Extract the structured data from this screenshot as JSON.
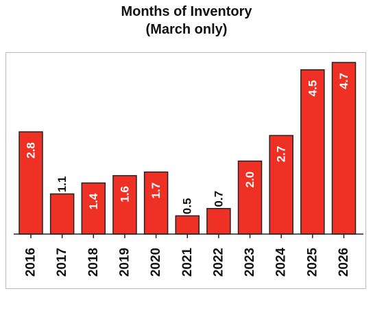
{
  "chart_data": {
    "type": "bar",
    "title_lines": [
      "Months of Inventory",
      "(March only)"
    ],
    "categories": [
      "2016",
      "2017",
      "2018",
      "2019",
      "2020",
      "2021",
      "2022",
      "2023",
      "2024",
      "2025",
      "2026"
    ],
    "values": [
      2.8,
      1.1,
      1.4,
      1.6,
      1.7,
      0.5,
      0.7,
      2.0,
      2.7,
      4.5,
      4.7
    ],
    "value_labels": [
      "2.8",
      "1.1",
      "1.4",
      "1.6",
      "1.7",
      "0.5",
      "0.7",
      "2.0",
      "2.7",
      "4.5",
      "4.7"
    ],
    "label_inside_min": 1.2,
    "ylim": [
      0,
      4.7
    ],
    "grid": false,
    "colors": {
      "bar": "#ee3124",
      "bar_border": "#222222",
      "axis": "#222222",
      "label_inside": "#ffffff",
      "label_outside": "#111111"
    }
  }
}
